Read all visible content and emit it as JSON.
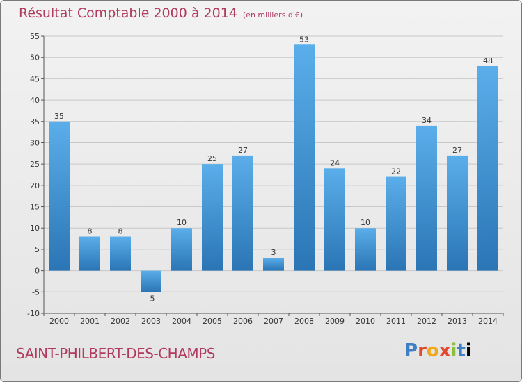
{
  "header": {
    "title": "Résultat Comptable 2000 à 2014",
    "subtitle": "(en milliers d'€)"
  },
  "footer": {
    "commune": "SAINT-PHILBERT-DES-CHAMPS",
    "brand": [
      "P",
      "r",
      "o",
      "x",
      "i",
      "t",
      "i"
    ]
  },
  "colors": {
    "bar_light": "#5aaeea",
    "bar_dark": "#2b75b5",
    "title": "#b03a5e"
  },
  "chart_data": {
    "type": "bar",
    "title": "Résultat Comptable 2000 à 2014",
    "subtitle": "(en milliers d'€)",
    "xlabel": "",
    "ylabel": "",
    "categories": [
      "2000",
      "2001",
      "2002",
      "2003",
      "2004",
      "2005",
      "2006",
      "2007",
      "2008",
      "2009",
      "2010",
      "2011",
      "2012",
      "2013",
      "2014"
    ],
    "values": [
      35,
      8,
      8,
      -5,
      10,
      25,
      27,
      3,
      53,
      24,
      10,
      22,
      34,
      27,
      48
    ],
    "ylim": [
      -10,
      55
    ],
    "yticks": [
      -10,
      -5,
      0,
      5,
      10,
      15,
      20,
      25,
      30,
      35,
      40,
      45,
      50,
      55
    ],
    "grid": true
  }
}
